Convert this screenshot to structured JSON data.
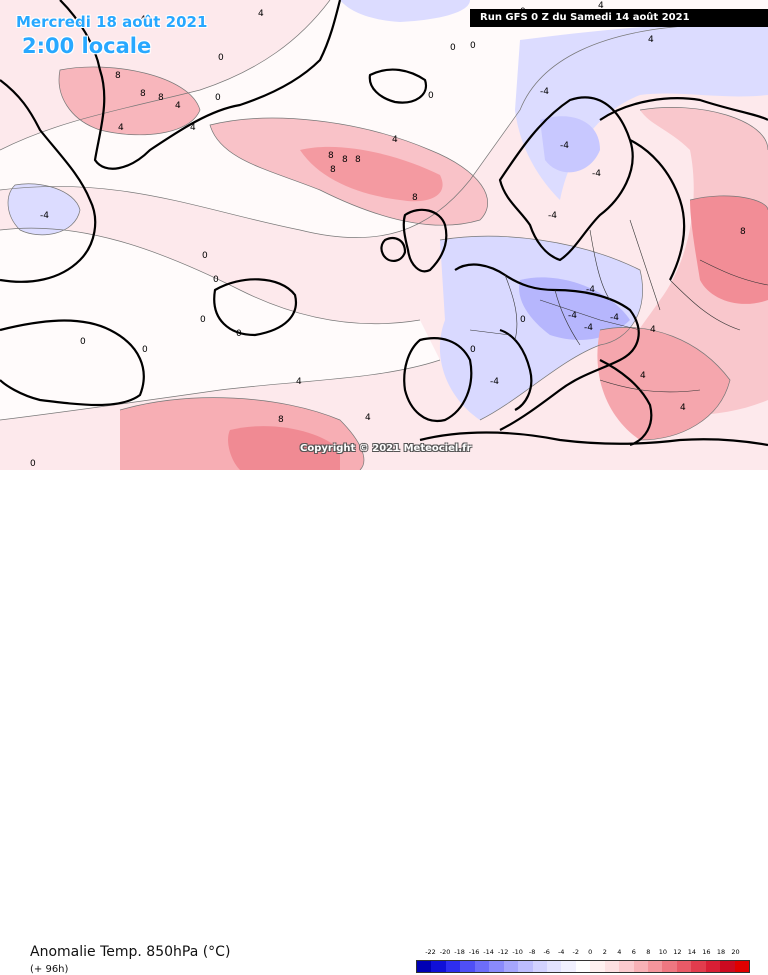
{
  "header": {
    "date_label": "Mercredi 18 août 2021",
    "time_label": "2:00 locale",
    "run_label": "Run GFS 0 Z du Samedi 14 août 2021"
  },
  "copyright": "Copyright © 2021 Meteociel.fr",
  "footer": {
    "parameter_label": "Anomalie Temp. 850hPa (°C)",
    "lead_time": "(+ 96h)"
  },
  "legend": {
    "ticks": [
      "-22",
      "-20",
      "-18",
      "-16",
      "-14",
      "-12",
      "-10",
      "-8",
      "-6",
      "-4",
      "-2",
      "0",
      "2",
      "4",
      "6",
      "8",
      "10",
      "12",
      "14",
      "16",
      "18",
      "20"
    ],
    "colors": [
      "#0000b4",
      "#1010d8",
      "#2e2ef0",
      "#4f4ff6",
      "#6d6dfa",
      "#8a8afc",
      "#a5a5fd",
      "#bdbdfe",
      "#d2d2ff",
      "#e3e3ff",
      "#f1f1ff",
      "#ffffff",
      "#fff0f0",
      "#fde0e2",
      "#fbcace",
      "#f8b1b6",
      "#f4959c",
      "#ef7781",
      "#e95a67",
      "#e23c4d",
      "#d91f35",
      "#cc0a20",
      "#e00000"
    ]
  },
  "map_labels": [
    {
      "text": "4"
    },
    {
      "text": "4"
    },
    {
      "text": "0"
    },
    {
      "text": "8"
    },
    {
      "text": "8"
    },
    {
      "text": "8"
    },
    {
      "text": "4"
    },
    {
      "text": "4"
    },
    {
      "text": "0"
    },
    {
      "text": "4"
    },
    {
      "text": "8"
    },
    {
      "text": "8"
    },
    {
      "text": "8"
    },
    {
      "text": "8"
    },
    {
      "text": "4"
    },
    {
      "text": "8"
    },
    {
      "text": "-4"
    },
    {
      "text": "-4"
    },
    {
      "text": "0"
    },
    {
      "text": "0"
    },
    {
      "text": "4"
    },
    {
      "text": "0"
    },
    {
      "text": "0"
    },
    {
      "text": "4"
    },
    {
      "text": "0"
    },
    {
      "text": "0"
    },
    {
      "text": "-4"
    },
    {
      "text": "-4"
    },
    {
      "text": "-4"
    },
    {
      "text": "-4"
    },
    {
      "text": "4"
    },
    {
      "text": "8"
    },
    {
      "text": "-4"
    },
    {
      "text": "-4"
    },
    {
      "text": "-4"
    },
    {
      "text": "0"
    },
    {
      "text": "0"
    },
    {
      "text": "4"
    },
    {
      "text": "8"
    },
    {
      "text": "4"
    },
    {
      "text": "0"
    },
    {
      "text": "0"
    },
    {
      "text": "0"
    },
    {
      "text": "0"
    },
    {
      "text": "0"
    },
    {
      "text": "4"
    },
    {
      "text": "4"
    },
    {
      "text": "-4"
    }
  ]
}
